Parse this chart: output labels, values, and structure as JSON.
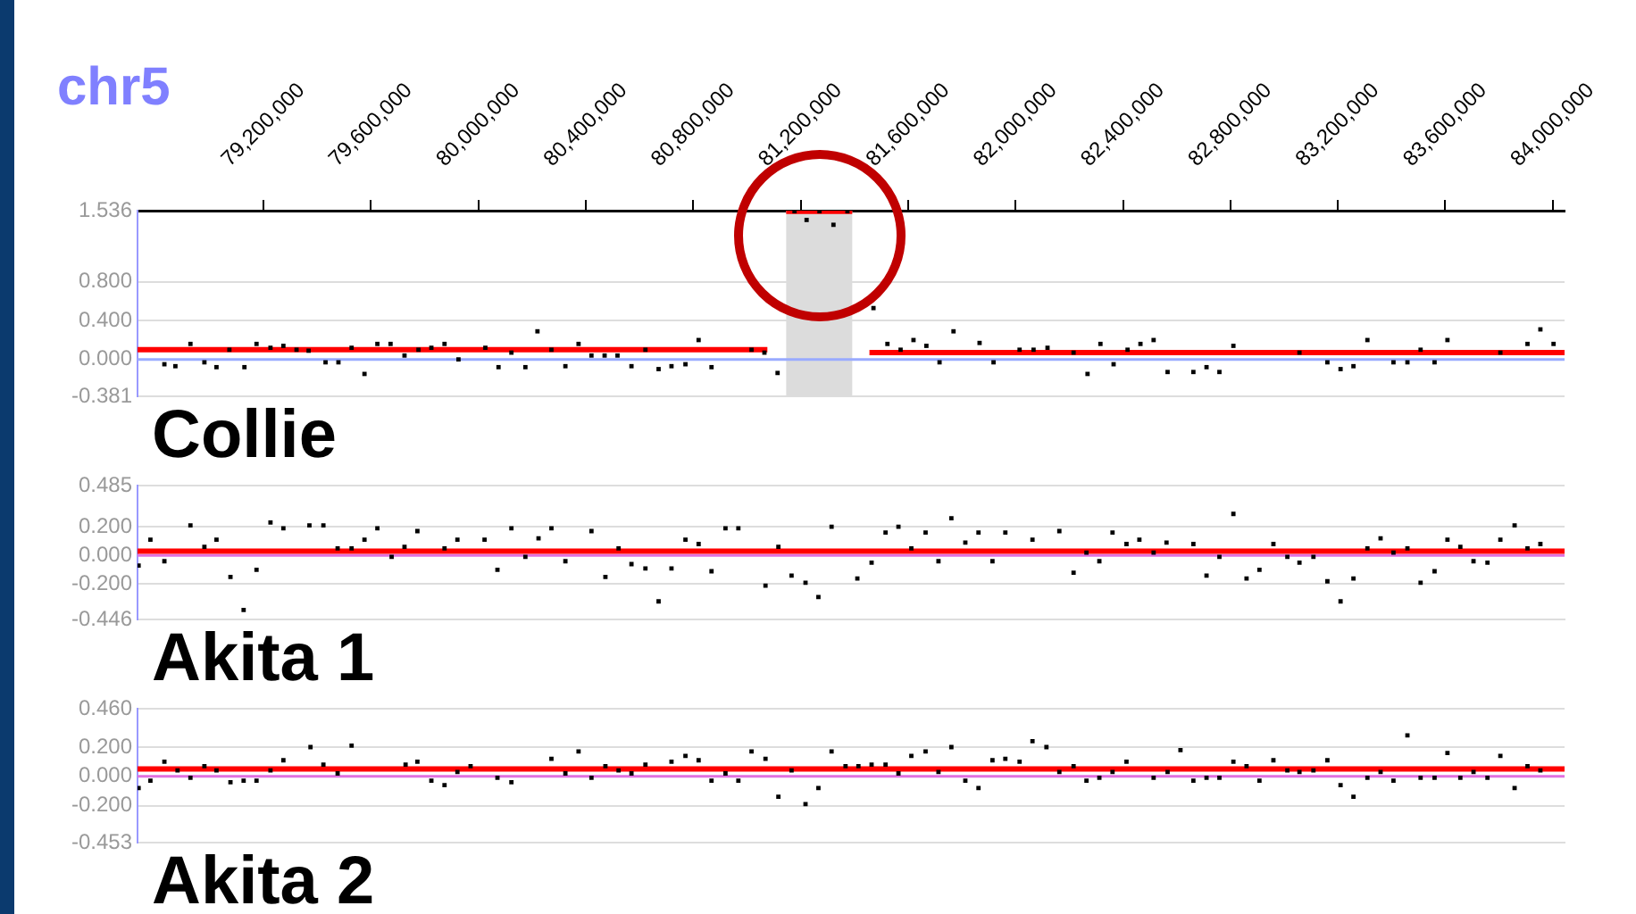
{
  "chart_data": [
    {
      "type": "scatter",
      "title": "Collie",
      "xlabel": "chr5",
      "xlim": [
        78731000,
        84044000
      ],
      "xticks": [
        {
          "value": 79200000,
          "label": "79,200,000"
        },
        {
          "value": 79600000,
          "label": "79,600,000"
        },
        {
          "value": 80000000,
          "label": "80,000,000"
        },
        {
          "value": 80400000,
          "label": "80,400,000"
        },
        {
          "value": 80800000,
          "label": "80,800,000"
        },
        {
          "value": 81200000,
          "label": "81,200,000"
        },
        {
          "value": 81600000,
          "label": "81,600,000"
        },
        {
          "value": 82000000,
          "label": "82,000,000"
        },
        {
          "value": 82400000,
          "label": "82,400,000"
        },
        {
          "value": 82800000,
          "label": "82,800,000"
        },
        {
          "value": 83200000,
          "label": "83,200,000"
        },
        {
          "value": 83600000,
          "label": "83,600,000"
        },
        {
          "value": 84000000,
          "label": "84,000,000"
        }
      ],
      "ylim": [
        -0.381,
        1.536
      ],
      "yticks": [
        {
          "value": -0.381,
          "label": "-0.381"
        },
        {
          "value": 0,
          "label": "0.000"
        },
        {
          "value": 0.4,
          "label": "0.400"
        },
        {
          "value": 0.8,
          "label": "0.800"
        },
        {
          "value": 1.536,
          "label": "1.536"
        }
      ],
      "grid": "y",
      "legend": false,
      "marker": "square",
      "bands": [
        {
          "axis": "x",
          "from": 81146000,
          "to": 81392000,
          "color": "#dcdcdc"
        }
      ],
      "ref_lines": [
        {
          "axis": "y",
          "value": 0,
          "color": "#99aaff"
        }
      ],
      "series": [
        {
          "type": "scatter",
          "color": "#000000",
          "x": [
            78831000,
            78872000,
            78928000,
            78980000,
            79025000,
            79073000,
            79129000,
            79174000,
            79226000,
            79274000,
            79323000,
            79368000,
            79431000,
            79479000,
            79528000,
            79576000,
            79624000,
            79673000,
            79725000,
            79777000,
            79825000,
            79874000,
            79926000,
            80026000,
            80075000,
            80123000,
            80175000,
            80220000,
            80272000,
            80324000,
            80373000,
            80421000,
            80470000,
            80518000,
            80570000,
            80622000,
            80671000,
            80719000,
            80771000,
            80820000,
            80868000,
            81017000,
            81065000,
            81114000,
            81177000,
            81222000,
            81270000,
            81322000,
            81374000,
            81471000,
            81523000,
            81572000,
            81620000,
            81668000,
            81717000,
            81769000,
            81866000,
            81918000,
            82015000,
            82067000,
            82119000,
            82216000,
            82268000,
            82316000,
            82365000,
            82417000,
            82465000,
            82514000,
            82566000,
            82662000,
            82711000,
            82759000,
            82811000,
            83057000,
            83161000,
            83210000,
            83258000,
            83310000,
            83407000,
            83459000,
            83508000,
            83560000,
            83608000,
            83805000,
            83906000,
            83954000,
            84003000
          ],
          "values": [
            -0.05,
            -0.07,
            0.16,
            -0.03,
            -0.08,
            0.1,
            -0.08,
            0.16,
            0.12,
            0.14,
            0.1,
            0.09,
            -0.03,
            -0.03,
            0.12,
            -0.15,
            0.16,
            0.16,
            0.04,
            0.1,
            0.12,
            0.16,
            0,
            0.12,
            -0.08,
            0.07,
            -0.08,
            0.29,
            0.1,
            -0.07,
            0.16,
            0.04,
            0.04,
            0.04,
            -0.07,
            0.1,
            -0.1,
            -0.07,
            -0.05,
            0.2,
            -0.08,
            0.1,
            0.07,
            -0.14,
            1.53,
            1.44,
            1.53,
            1.39,
            1.53,
            0.53,
            0.16,
            0.1,
            0.2,
            0.14,
            -0.03,
            0.29,
            0.17,
            -0.03,
            0.1,
            0.1,
            0.12,
            0.07,
            -0.15,
            0.16,
            -0.05,
            0.1,
            0.16,
            0.2,
            -0.13,
            -0.13,
            -0.08,
            -0.13,
            0.14,
            0.07,
            -0.03,
            -0.1,
            -0.07,
            0.2,
            -0.03,
            -0.03,
            0.1,
            -0.03,
            0.2,
            0.07,
            0.16,
            0.31,
            0.16
          ]
        },
        {
          "type": "line",
          "marker": "none",
          "color": "#ff0000",
          "x": [
            78731000,
            81076000
          ],
          "values": [
            0.1,
            0.1
          ]
        },
        {
          "type": "line",
          "marker": "none",
          "color": "#ff0000",
          "x": [
            81146000,
            81392000
          ],
          "values": [
            1.53,
            1.53
          ]
        },
        {
          "type": "line",
          "marker": "none",
          "color": "#ff0000",
          "x": [
            81456000,
            84044000
          ],
          "values": [
            0.07,
            0.07
          ]
        }
      ]
    },
    {
      "type": "scatter",
      "title": "Akita 1",
      "xlim": [
        78731000,
        84044000
      ],
      "tick_labels": "y",
      "ylim": [
        -0.446,
        0.485
      ],
      "yticks": [
        {
          "value": -0.446,
          "label": "-0.446"
        },
        {
          "value": -0.2,
          "label": "-0.200"
        },
        {
          "value": 0,
          "label": "0.000"
        },
        {
          "value": 0.2,
          "label": "0.200"
        },
        {
          "value": 0.485,
          "label": "0.485"
        }
      ],
      "grid": "y",
      "legend": false,
      "marker": "square",
      "ref_lines": [
        {
          "axis": "y",
          "value": 0,
          "color": "#e070e0"
        }
      ],
      "series": [
        {
          "type": "scatter",
          "color": "#000000",
          "x": [
            78735000,
            78779000,
            78831000,
            78928000,
            78980000,
            79025000,
            79077000,
            79126000,
            79174000,
            79226000,
            79274000,
            79371000,
            79423000,
            79476000,
            79528000,
            79576000,
            79624000,
            79677000,
            79725000,
            79773000,
            79874000,
            79922000,
            80023000,
            80071000,
            80123000,
            80175000,
            80224000,
            80272000,
            80324000,
            80421000,
            80473000,
            80522000,
            80570000,
            80622000,
            80671000,
            80719000,
            80771000,
            80820000,
            80868000,
            80920000,
            80968000,
            81069000,
            81117000,
            81166000,
            81218000,
            81266000,
            81315000,
            81411000,
            81464000,
            81516000,
            81564000,
            81612000,
            81665000,
            81713000,
            81761000,
            81813000,
            81862000,
            81914000,
            81962000,
            82063000,
            82163000,
            82216000,
            82264000,
            82312000,
            82361000,
            82413000,
            82461000,
            82514000,
            82562000,
            82662000,
            82711000,
            82759000,
            82811000,
            82860000,
            82908000,
            82960000,
            83012000,
            83057000,
            83109000,
            83161000,
            83210000,
            83258000,
            83310000,
            83359000,
            83407000,
            83459000,
            83508000,
            83560000,
            83608000,
            83656000,
            83705000,
            83757000,
            83805000,
            83858000,
            83906000,
            83954000
          ],
          "values": [
            -0.07,
            0.11,
            -0.04,
            0.21,
            0.06,
            0.11,
            -0.15,
            -0.38,
            -0.1,
            0.23,
            0.19,
            0.21,
            0.21,
            0.05,
            0.05,
            0.11,
            0.19,
            -0.01,
            0.06,
            0.17,
            0.05,
            0.11,
            0.11,
            -0.1,
            0.19,
            -0.01,
            0.12,
            0.19,
            -0.04,
            0.17,
            -0.15,
            0.05,
            -0.06,
            -0.09,
            -0.32,
            -0.09,
            0.11,
            0.08,
            -0.11,
            0.19,
            0.19,
            -0.21,
            0.06,
            -0.14,
            -0.19,
            -0.29,
            0.2,
            -0.16,
            -0.05,
            0.16,
            0.2,
            0.05,
            0.16,
            -0.04,
            0.26,
            0.09,
            0.16,
            -0.04,
            0.16,
            0.11,
            0.17,
            -0.12,
            0.02,
            -0.04,
            0.16,
            0.08,
            0.11,
            0.02,
            0.09,
            0.08,
            -0.14,
            -0.01,
            0.29,
            -0.16,
            -0.1,
            0.08,
            -0.01,
            -0.05,
            -0.01,
            -0.18,
            -0.32,
            -0.16,
            0.05,
            0.12,
            0.02,
            0.05,
            -0.19,
            -0.11,
            0.11,
            0.06,
            -0.04,
            -0.05,
            0.11,
            0.21,
            0.05,
            0.08
          ]
        },
        {
          "type": "line",
          "marker": "none",
          "color": "#ff0000",
          "x": [
            78731000,
            84044000
          ],
          "values": [
            0.03,
            0.03
          ]
        }
      ]
    },
    {
      "type": "scatter",
      "title": "Akita 2",
      "xlim": [
        78731000,
        84044000
      ],
      "tick_labels": "y",
      "ylim": [
        -0.453,
        0.46
      ],
      "yticks": [
        {
          "value": -0.453,
          "label": "-0.453"
        },
        {
          "value": -0.2,
          "label": "-0.200"
        },
        {
          "value": 0,
          "label": "0.000"
        },
        {
          "value": 0.2,
          "label": "0.200"
        },
        {
          "value": 0.46,
          "label": "0.460"
        }
      ],
      "grid": "y",
      "legend": false,
      "marker": "square",
      "ref_lines": [
        {
          "axis": "y",
          "value": 0,
          "color": "#e070e0"
        }
      ],
      "series": [
        {
          "type": "scatter",
          "color": "#000000",
          "x": [
            78735000,
            78779000,
            78831000,
            78880000,
            78928000,
            78980000,
            79025000,
            79077000,
            79126000,
            79174000,
            79226000,
            79274000,
            79375000,
            79423000,
            79476000,
            79528000,
            79729000,
            79773000,
            79825000,
            79874000,
            79922000,
            79971000,
            80071000,
            80123000,
            80272000,
            80324000,
            80373000,
            80421000,
            80473000,
            80522000,
            80570000,
            80622000,
            80719000,
            80771000,
            80820000,
            80868000,
            80920000,
            80968000,
            81017000,
            81069000,
            81117000,
            81166000,
            81218000,
            81266000,
            81315000,
            81367000,
            81415000,
            81464000,
            81516000,
            81564000,
            81612000,
            81665000,
            81713000,
            81761000,
            81813000,
            81862000,
            81914000,
            81962000,
            82015000,
            82063000,
            82115000,
            82163000,
            82216000,
            82264000,
            82312000,
            82361000,
            82413000,
            82514000,
            82566000,
            82614000,
            82662000,
            82711000,
            82759000,
            82811000,
            82860000,
            82908000,
            82960000,
            83012000,
            83057000,
            83109000,
            83161000,
            83210000,
            83258000,
            83310000,
            83359000,
            83407000,
            83459000,
            83508000,
            83560000,
            83608000,
            83656000,
            83705000,
            83757000,
            83805000,
            83858000,
            83906000,
            83954000
          ],
          "values": [
            -0.08,
            -0.03,
            0.1,
            0.04,
            -0.01,
            0.07,
            0.04,
            -0.04,
            -0.03,
            -0.03,
            0.04,
            0.11,
            0.2,
            0.08,
            0.02,
            0.21,
            0.08,
            0.1,
            -0.03,
            -0.06,
            0.03,
            0.07,
            -0.01,
            -0.04,
            0.12,
            0.02,
            0.17,
            -0.01,
            0.07,
            0.04,
            0.02,
            0.08,
            0.1,
            0.14,
            0.11,
            -0.03,
            0.02,
            -0.03,
            0.17,
            0.12,
            -0.14,
            0.04,
            -0.19,
            -0.08,
            0.17,
            0.07,
            0.07,
            0.08,
            0.08,
            0.02,
            0.14,
            0.17,
            0.03,
            0.2,
            -0.03,
            -0.08,
            0.11,
            0.12,
            0.1,
            0.24,
            0.2,
            0.03,
            0.07,
            -0.03,
            -0.01,
            0.03,
            0.1,
            -0.01,
            0.03,
            0.18,
            -0.03,
            -0.01,
            -0.01,
            0.1,
            0.07,
            -0.03,
            0.11,
            0.04,
            0.03,
            0.04,
            0.11,
            -0.06,
            -0.14,
            -0.01,
            0.03,
            -0.03,
            0.28,
            -0.01,
            -0.01,
            0.16,
            -0.01,
            0.03,
            -0.01,
            0.14,
            -0.08,
            0.07,
            0.04
          ]
        },
        {
          "type": "line",
          "marker": "none",
          "color": "#ff0000",
          "x": [
            78731000,
            84044000
          ],
          "values": [
            0.05,
            0.05
          ]
        }
      ]
    }
  ]
}
